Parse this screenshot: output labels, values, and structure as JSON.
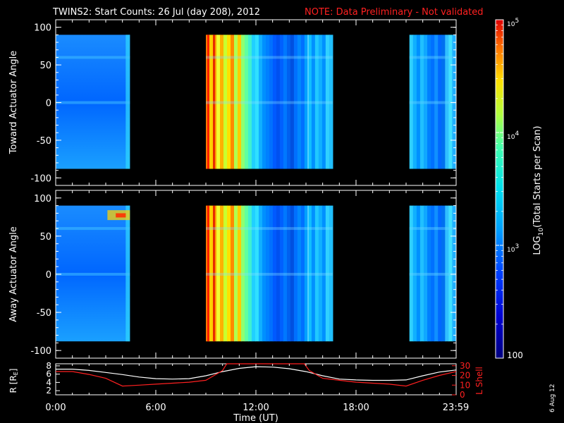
{
  "title": {
    "main": "TWINS2: Start Counts: 26 Jul (day 208), 2012",
    "note": "NOTE: Data Preliminary - Not validated"
  },
  "colors": {
    "note": "#ff2020",
    "lshell": "#ff2020",
    "radius": "#ffffff",
    "background": "#000000"
  },
  "chart_data": [
    {
      "type": "heatmap",
      "panel": "toward",
      "ylabel": "Toward Actuator Angle",
      "ylim": [
        -110,
        110
      ],
      "yticks": [
        100,
        50,
        0,
        -50,
        -100
      ],
      "xlim": [
        0,
        24
      ],
      "x_unit": "hours UT",
      "data_intervals": [
        [
          0.0,
          4.45
        ],
        [
          9.0,
          16.6
        ],
        [
          21.2,
          23.98
        ]
      ],
      "angle_range": [
        -88,
        90
      ]
    },
    {
      "type": "heatmap",
      "panel": "away",
      "ylabel": "Away Actuator Angle",
      "ylim": [
        -110,
        110
      ],
      "yticks": [
        100,
        50,
        0,
        -50,
        -100
      ],
      "xlim": [
        0,
        24
      ],
      "x_unit": "hours UT",
      "data_intervals": [
        [
          0.0,
          4.45
        ],
        [
          9.0,
          16.6
        ],
        [
          21.2,
          23.98
        ]
      ],
      "angle_range": [
        -88,
        90
      ]
    },
    {
      "type": "line",
      "panel": "ephemeris",
      "ylabel_left": "R [RE]",
      "ylabel_right": "L Shell",
      "xlabel": "Time (UT)",
      "xticks": [
        "0:00",
        "6:00",
        "12:00",
        "18:00",
        "23:59"
      ],
      "yticks_left": [
        8,
        6,
        4,
        2
      ],
      "yticks_right": [
        30,
        20,
        10,
        0
      ],
      "ylim_left": [
        1,
        8.5
      ],
      "ylim_right": [
        0,
        32
      ],
      "series": [
        {
          "name": "R [RE]",
          "color": "#ffffff",
          "x": [
            0,
            1,
            2,
            3,
            4,
            5,
            6,
            7,
            8,
            9,
            10,
            11,
            12,
            13,
            14,
            15,
            16,
            17,
            18,
            19,
            20,
            21,
            22,
            23,
            24
          ],
          "y": [
            7.2,
            7.2,
            6.9,
            6.4,
            5.9,
            5.3,
            4.9,
            4.8,
            4.9,
            5.6,
            6.6,
            7.4,
            7.8,
            7.7,
            7.3,
            6.6,
            5.6,
            4.8,
            4.6,
            4.5,
            4.5,
            4.6,
            5.6,
            6.5,
            7.0
          ]
        },
        {
          "name": "L Shell",
          "color": "#ff2020",
          "x": [
            0,
            1,
            2,
            3,
            4,
            5,
            6,
            7,
            8,
            9,
            10,
            10.25,
            14.9,
            15.2,
            16,
            17,
            18,
            19,
            20,
            21,
            22,
            23,
            24
          ],
          "y": [
            24,
            24,
            21,
            17,
            9,
            10,
            11,
            12,
            13,
            15,
            25,
            32,
            32,
            25,
            17,
            15,
            13,
            12,
            11,
            9,
            15,
            20,
            24
          ]
        }
      ]
    }
  ],
  "colorbar": {
    "label": "LOG10(Total Starts per Scan)",
    "label_prefix": "LOG",
    "label_sub": "10",
    "label_suffix": "(Total Starts per Scan)",
    "range": [
      100,
      100000
    ],
    "scale": "log",
    "ticks": [
      {
        "value": 100000,
        "base": "10",
        "exp": "5"
      },
      {
        "value": 10000,
        "base": "10",
        "exp": "4"
      },
      {
        "value": 1000,
        "base": "10",
        "exp": "3"
      },
      {
        "value": 100,
        "base": "100",
        "exp": ""
      }
    ]
  },
  "side_date": "6 Aug 12"
}
